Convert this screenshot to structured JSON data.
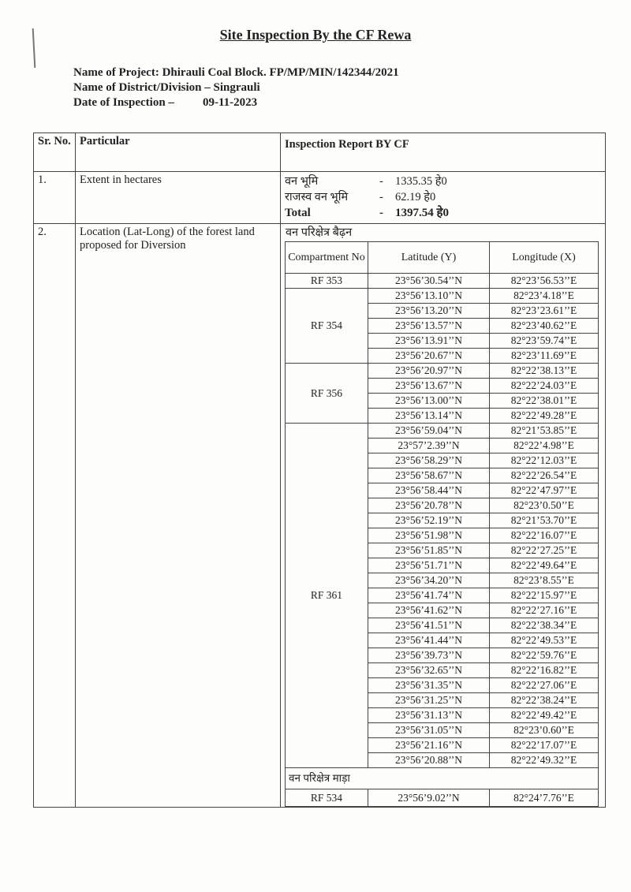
{
  "title": "Site Inspection By the CF Rewa",
  "meta": {
    "project_label": "Name of Project:",
    "project_value": "Dhirauli Coal Block. FP/MP/MIN/142344/2021",
    "district_label": "Name of District/Division –",
    "district_value": "Singrauli",
    "date_label": "Date of Inspection –",
    "date_value": "09-11-2023"
  },
  "table": {
    "headers": {
      "sr": "Sr. No.",
      "particular": "Particular",
      "report": "Inspection Report  BY CF"
    },
    "row1": {
      "sr": "1.",
      "particular": "Extent in hectares",
      "lines": [
        {
          "label": "वन भूमि",
          "dash": "-",
          "value": "1335.35 हे0"
        },
        {
          "label": "राजस्व वन भूमि",
          "dash": "-",
          "value": "62.19 हे0"
        },
        {
          "label": "Total",
          "dash": "-",
          "value": "1397.54 हे0"
        }
      ]
    },
    "row2": {
      "sr": "2.",
      "particular": "Location (Lat-Long) of the forest land proposed for Diversion",
      "columns": {
        "compartment": "Compartment No",
        "lat": "Latitude (Y)",
        "lon": "Longitude (X)"
      },
      "ranges": [
        {
          "name": "वन परिक्षेत्र बैढ़न",
          "compartments": [
            {
              "id": "RF 353",
              "points": [
                [
                  "23°56’30.54’’N",
                  "82°23’56.53’’E"
                ]
              ]
            },
            {
              "id": "RF 354",
              "points": [
                [
                  "23°56’13.10’’N",
                  "82°23’4.18’’E"
                ],
                [
                  "23°56’13.20’’N",
                  "82°23’23.61’’E"
                ],
                [
                  "23°56’13.57’’N",
                  "82°23’40.62’’E"
                ],
                [
                  "23°56’13.91’’N",
                  "82°23’59.74’’E"
                ],
                [
                  "23°56’20.67’’N",
                  "82°23’11.69’’E"
                ]
              ]
            },
            {
              "id": "RF 356",
              "points": [
                [
                  "23°56’20.97’’N",
                  "82°22’38.13’’E"
                ],
                [
                  "23°56’13.67’’N",
                  "82°22’24.03’’E"
                ],
                [
                  "23°56’13.00’’N",
                  "82°22’38.01’’E"
                ],
                [
                  "23°56’13.14’’N",
                  "82°22’49.28’’E"
                ]
              ]
            },
            {
              "id": "RF 361",
              "points": [
                [
                  "23°56’59.04’’N",
                  "82°21’53.85’’E"
                ],
                [
                  "23°57’2.39’’N",
                  "82°22’4.98’’E"
                ],
                [
                  "23°56’58.29’’N",
                  "82°22’12.03’’E"
                ],
                [
                  "23°56’58.67’’N",
                  "82°22’26.54’’E"
                ],
                [
                  "23°56’58.44’’N",
                  "82°22’47.97’’E"
                ],
                [
                  "23°56’20.78’’N",
                  "82°23’0.50’’E"
                ],
                [
                  "23°56’52.19’’N",
                  "82°21’53.70’’E"
                ],
                [
                  "23°56’51.98’’N",
                  "82°22’16.07’’E"
                ],
                [
                  "23°56’51.85’’N",
                  "82°22’27.25’’E"
                ],
                [
                  "23°56’51.71’’N",
                  "82°22’49.64’’E"
                ],
                [
                  "23°56’34.20’’N",
                  "82°23’8.55’’E"
                ],
                [
                  "23°56’41.74’’N",
                  "82°22’15.97’’E"
                ],
                [
                  "23°56’41.62’’N",
                  "82°22’27.16’’E"
                ],
                [
                  "23°56’41.51’’N",
                  "82°22’38.34’’E"
                ],
                [
                  "23°56’41.44’’N",
                  "82°22’49.53’’E"
                ],
                [
                  "23°56’39.73’’N",
                  "82°22’59.76’’E"
                ],
                [
                  "23°56’32.65’’N",
                  "82°22’16.82’’E"
                ],
                [
                  "23°56’31.35’’N",
                  "82°22’27.06’’E"
                ],
                [
                  "23°56’31.25’’N",
                  "82°22’38.24’’E"
                ],
                [
                  "23°56’31.13’’N",
                  "82°22’49.42’’E"
                ],
                [
                  "23°56’31.05’’N",
                  "82°23’0.60’’E"
                ],
                [
                  "23°56’21.16’’N",
                  "82°22’17.07’’E"
                ],
                [
                  "23°56’20.88’’N",
                  "82°22’49.32’’E"
                ]
              ]
            }
          ]
        },
        {
          "name": "वन परिक्षेत्र माड़ा",
          "compartments": [
            {
              "id": "RF 534",
              "points": [
                [
                  "23°56’9.02’’N",
                  "82°24’7.76’’E"
                ]
              ]
            }
          ]
        }
      ]
    }
  }
}
